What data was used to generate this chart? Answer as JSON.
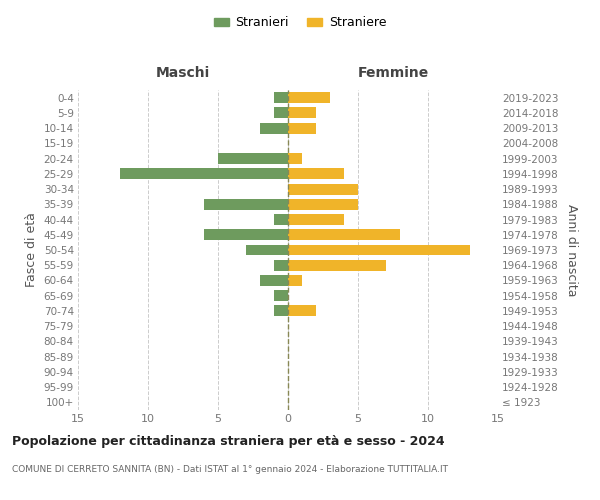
{
  "age_groups": [
    "100+",
    "95-99",
    "90-94",
    "85-89",
    "80-84",
    "75-79",
    "70-74",
    "65-69",
    "60-64",
    "55-59",
    "50-54",
    "45-49",
    "40-44",
    "35-39",
    "30-34",
    "25-29",
    "20-24",
    "15-19",
    "10-14",
    "5-9",
    "0-4"
  ],
  "birth_years": [
    "≤ 1923",
    "1924-1928",
    "1929-1933",
    "1934-1938",
    "1939-1943",
    "1944-1948",
    "1949-1953",
    "1954-1958",
    "1959-1963",
    "1964-1968",
    "1969-1973",
    "1974-1978",
    "1979-1983",
    "1984-1988",
    "1989-1993",
    "1994-1998",
    "1999-2003",
    "2004-2008",
    "2009-2013",
    "2014-2018",
    "2019-2023"
  ],
  "maschi": [
    0,
    0,
    0,
    0,
    0,
    0,
    1,
    1,
    2,
    1,
    3,
    6,
    1,
    6,
    0,
    12,
    5,
    0,
    2,
    1,
    1
  ],
  "femmine": [
    0,
    0,
    0,
    0,
    0,
    0,
    2,
    0,
    1,
    7,
    13,
    8,
    4,
    5,
    5,
    4,
    1,
    0,
    2,
    2,
    3
  ],
  "color_maschi": "#6e9b5e",
  "color_femmine": "#f0b429",
  "title": "Popolazione per cittadinanza straniera per età e sesso - 2024",
  "subtitle": "COMUNE DI CERRETO SANNITA (BN) - Dati ISTAT al 1° gennaio 2024 - Elaborazione TUTTITALIA.IT",
  "xlabel_left": "Maschi",
  "xlabel_right": "Femmine",
  "ylabel_left": "Fasce di età",
  "ylabel_right": "Anni di nascita",
  "legend_maschi": "Stranieri",
  "legend_femmine": "Straniere",
  "xlim": 15,
  "bg_color": "#ffffff",
  "grid_color": "#cccccc",
  "axis_label_color": "#555555",
  "tick_label_color": "#777777"
}
